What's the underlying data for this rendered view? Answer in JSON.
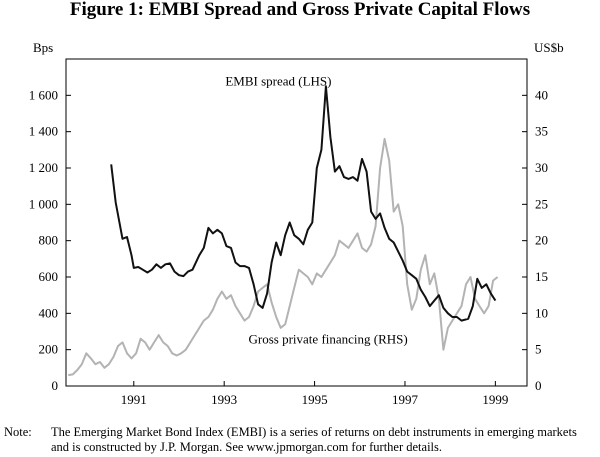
{
  "title": "Figure 1: EMBI Spread and Gross Private Capital Flows",
  "note": {
    "label": "Note:",
    "text": "The Emerging Market Bond Index (EMBI) is a series of returns on debt instruments in emerging markets and is constructed by J.P. Morgan. See www.jpmorgan.com for further details."
  },
  "chart_data": {
    "type": "line",
    "left_axis": {
      "unit": "Bps",
      "ticks": [
        "0",
        "200",
        "400",
        "600",
        "800",
        "1 000",
        "1 200",
        "1 400",
        "1 600"
      ],
      "range": [
        0,
        1800
      ]
    },
    "right_axis": {
      "unit": "US$b",
      "ticks": [
        "0",
        "5",
        "10",
        "15",
        "20",
        "25",
        "30",
        "35",
        "40"
      ],
      "range": [
        0,
        45
      ]
    },
    "x_axis": {
      "range": [
        1989.5,
        1999.7
      ],
      "tick_labels": [
        "1991",
        "1993",
        "1995",
        "1997",
        "1999"
      ],
      "tick_values": [
        1991,
        1993,
        1995,
        1997,
        1999
      ]
    },
    "annotations": [
      {
        "text": "EMBI spread (LHS)",
        "x": 1994.2,
        "y_lhs": 1655
      },
      {
        "text": "Gross private financing (RHS)",
        "x": 1995.3,
        "y_lhs": 235
      }
    ],
    "series": [
      {
        "name": "EMBI spread (LHS)",
        "axis": "left",
        "color": "#111111",
        "x": [
          1990.5,
          1990.6,
          1990.75,
          1990.85,
          1990.95,
          1991.0,
          1991.1,
          1991.2,
          1991.3,
          1991.4,
          1991.5,
          1991.6,
          1991.7,
          1991.8,
          1991.9,
          1992.0,
          1992.1,
          1992.2,
          1992.3,
          1992.45,
          1992.55,
          1992.65,
          1992.75,
          1992.85,
          1992.95,
          1993.05,
          1993.15,
          1993.25,
          1993.35,
          1993.45,
          1993.55,
          1993.65,
          1993.75,
          1993.85,
          1993.95,
          1994.05,
          1994.15,
          1994.25,
          1994.35,
          1994.45,
          1994.55,
          1994.65,
          1994.75,
          1994.85,
          1994.95,
          1995.05,
          1995.15,
          1995.25,
          1995.35,
          1995.45,
          1995.55,
          1995.65,
          1995.75,
          1995.85,
          1995.95,
          1996.05,
          1996.15,
          1996.25,
          1996.35,
          1996.45,
          1996.55,
          1996.65,
          1996.75,
          1996.85,
          1996.95,
          1997.05,
          1997.15,
          1997.25,
          1997.35,
          1997.45,
          1997.55,
          1997.65,
          1997.75,
          1997.85,
          1997.95,
          1998.05,
          1998.15,
          1998.25,
          1998.4,
          1998.5,
          1998.6,
          1998.7,
          1998.8,
          1998.9,
          1999.0
        ],
        "y": [
          1220,
          1010,
          810,
          820,
          720,
          650,
          655,
          640,
          625,
          640,
          670,
          650,
          670,
          675,
          630,
          610,
          605,
          630,
          640,
          720,
          760,
          870,
          840,
          860,
          840,
          770,
          760,
          680,
          660,
          660,
          650,
          560,
          450,
          430,
          510,
          680,
          790,
          720,
          830,
          900,
          830,
          810,
          780,
          860,
          900,
          1200,
          1300,
          1650,
          1370,
          1180,
          1210,
          1150,
          1140,
          1150,
          1130,
          1250,
          1180,
          960,
          920,
          950,
          870,
          810,
          790,
          740,
          690,
          630,
          610,
          590,
          530,
          490,
          440,
          470,
          500,
          430,
          400,
          380,
          380,
          360,
          370,
          440,
          590,
          540,
          560,
          510,
          470
        ]
      },
      {
        "name": "Gross private financing (RHS)",
        "axis": "right",
        "color": "#b3b3b3",
        "x": [
          1989.55,
          1989.65,
          1989.75,
          1989.85,
          1989.95,
          1990.05,
          1990.15,
          1990.25,
          1990.35,
          1990.45,
          1990.55,
          1990.65,
          1990.75,
          1990.85,
          1990.95,
          1991.05,
          1991.15,
          1991.25,
          1991.35,
          1991.45,
          1991.55,
          1991.65,
          1991.75,
          1991.85,
          1991.95,
          1992.05,
          1992.15,
          1992.25,
          1992.35,
          1992.45,
          1992.55,
          1992.65,
          1992.75,
          1992.85,
          1992.95,
          1993.05,
          1993.15,
          1993.25,
          1993.35,
          1993.45,
          1993.55,
          1993.65,
          1993.75,
          1993.85,
          1993.95,
          1994.05,
          1994.15,
          1994.25,
          1994.35,
          1994.45,
          1994.55,
          1994.65,
          1994.75,
          1994.85,
          1994.95,
          1995.05,
          1995.15,
          1995.25,
          1995.35,
          1995.45,
          1995.55,
          1995.65,
          1995.75,
          1995.85,
          1995.95,
          1996.05,
          1996.15,
          1996.25,
          1996.35,
          1996.45,
          1996.55,
          1996.65,
          1996.75,
          1996.85,
          1996.95,
          1997.05,
          1997.15,
          1997.25,
          1997.35,
          1997.45,
          1997.55,
          1997.65,
          1997.75,
          1997.85,
          1997.95,
          1998.05,
          1998.15,
          1998.25,
          1998.35,
          1998.45,
          1998.55,
          1998.65,
          1998.75,
          1998.85,
          1998.95,
          1999.05
        ],
        "y": [
          1.5,
          1.6,
          2.2,
          3.0,
          4.5,
          3.8,
          3.0,
          3.3,
          2.5,
          3.0,
          4.0,
          5.5,
          6.0,
          4.5,
          3.8,
          4.5,
          6.5,
          6.0,
          5.0,
          6.0,
          7.0,
          6.0,
          5.5,
          4.5,
          4.2,
          4.5,
          5.0,
          6.0,
          7.0,
          8.0,
          9.0,
          9.5,
          10.5,
          12.0,
          13.0,
          12.0,
          12.5,
          11.0,
          10.0,
          9.0,
          9.5,
          11.0,
          13.0,
          13.5,
          14.0,
          11.5,
          9.5,
          8.0,
          8.5,
          11.0,
          13.5,
          16.0,
          15.5,
          15.0,
          14.0,
          15.5,
          15.0,
          16.0,
          17.0,
          18.0,
          20.0,
          19.5,
          19.0,
          20.0,
          21.0,
          19.0,
          18.5,
          19.5,
          22.0,
          30.0,
          34.0,
          31.0,
          24.0,
          25.0,
          22.0,
          14.0,
          10.5,
          12.0,
          16.0,
          18.0,
          14.0,
          15.5,
          12.0,
          5.0,
          8.0,
          9.0,
          10.0,
          11.0,
          14.0,
          15.0,
          12.0,
          11.0,
          10.0,
          11.0,
          14.5,
          15.0
        ]
      }
    ]
  }
}
